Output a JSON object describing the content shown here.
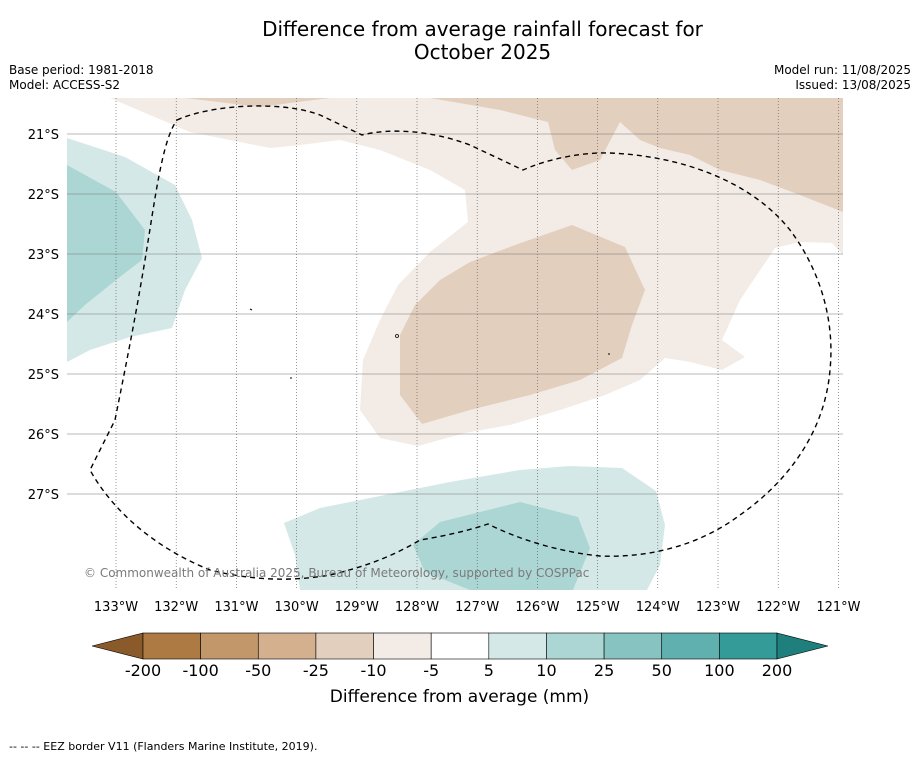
{
  "title_line1": "Difference from average rainfall forecast for",
  "title_line2": "October 2025",
  "base_period": "Base period: 1981-2018",
  "model": "Model: ACCESS-S2",
  "model_run": "Model run: 11/08/2025",
  "issued": "Issued: 13/08/2025",
  "copyright": "© Commonwealth of Australia 2025, Bureau of Meteorology, supported by COSPPac",
  "lon_ticks": [
    "133°W",
    "132°W",
    "131°W",
    "130°W",
    "129°W",
    "128°W",
    "127°W",
    "126°W",
    "125°W",
    "124°W",
    "123°W",
    "122°W",
    "121°W"
  ],
  "lat_ticks": [
    "21°S",
    "22°S",
    "23°S",
    "24°S",
    "25°S",
    "26°S",
    "27°S"
  ],
  "colorbar": {
    "label": "Difference from average (mm)",
    "ticks": [
      "-200",
      "-100",
      "-50",
      "-25",
      "-10",
      "-5",
      "5",
      "10",
      "25",
      "50",
      "100",
      "200"
    ],
    "colors": [
      "#8b5a2b",
      "#ad7a44",
      "#c2976a",
      "#d4b08e",
      "#e3cfbd",
      "#f3ece6",
      "#ffffff",
      "#d4e9e7",
      "#acd6d4",
      "#86c3c1",
      "#5fb0ae",
      "#349b98",
      "#1f7f7c"
    ]
  },
  "footer": "--  --  -- EEZ border V11 (Flanders Marine Institute, 2019)."
}
